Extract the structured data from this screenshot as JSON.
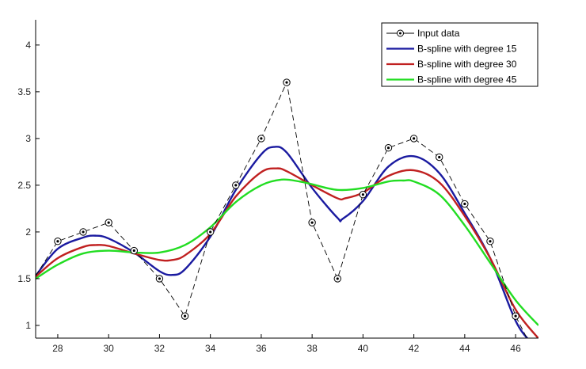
{
  "chart_data": {
    "type": "line",
    "title": "",
    "xlabel": "",
    "ylabel": "",
    "xlim": [
      27.13,
      46.9
    ],
    "ylim": [
      0.864,
      4.27
    ],
    "grid": false,
    "legend_position": "top-right",
    "x_ticks": [
      28,
      30,
      32,
      34,
      36,
      38,
      40,
      42,
      44,
      46
    ],
    "y_ticks": [
      1,
      1.5,
      2,
      2.5,
      3,
      3.5,
      4
    ],
    "x_tick_labels": [
      "28",
      "30",
      "32",
      "34",
      "36",
      "38",
      "40",
      "42",
      "44",
      "46"
    ],
    "y_tick_labels": [
      "1",
      "1.5",
      "2",
      "2.5",
      "3",
      "3.5",
      "4"
    ],
    "series": [
      {
        "name": "Input data",
        "style": "dashed-markers",
        "color": "#000000",
        "x": [
          27.13,
          28,
          29,
          30,
          31,
          32,
          33,
          34,
          35,
          36,
          37,
          38,
          39,
          40,
          41,
          42,
          43,
          44,
          45,
          46,
          46.45
        ],
        "y": [
          1.53,
          1.9,
          2.0,
          2.1,
          1.8,
          1.5,
          1.1,
          2.0,
          2.5,
          3.0,
          3.6,
          2.1,
          1.5,
          2.4,
          2.9,
          3.0,
          2.8,
          2.3,
          1.9,
          1.1,
          0.86
        ],
        "markers_x": [
          28,
          29,
          30,
          31,
          32,
          33,
          34,
          35,
          36,
          37,
          38,
          39,
          40,
          41,
          42,
          43,
          44,
          45,
          46
        ],
        "markers_y": [
          1.9,
          2.0,
          2.1,
          1.8,
          1.5,
          1.1,
          2.0,
          2.5,
          3.0,
          3.6,
          2.1,
          1.5,
          2.4,
          2.9,
          3.0,
          2.8,
          2.3,
          1.9,
          1.1
        ]
      },
      {
        "name": "B-spline with degree 15",
        "color": "#1a1aa0",
        "x": [
          27.13,
          28,
          29,
          29.5,
          30,
          31,
          32,
          32.5,
          33,
          34,
          35,
          36,
          36.5,
          37,
          38,
          39,
          39.2,
          40,
          41,
          42,
          43,
          44,
          45,
          46,
          46.6
        ],
        "y": [
          1.53,
          1.82,
          1.94,
          1.96,
          1.93,
          1.78,
          1.58,
          1.54,
          1.6,
          1.95,
          2.45,
          2.83,
          2.91,
          2.85,
          2.47,
          2.15,
          2.14,
          2.33,
          2.7,
          2.81,
          2.63,
          2.2,
          1.72,
          1.05,
          0.82
        ]
      },
      {
        "name": "B-spline with degree 30",
        "color": "#c02020",
        "x": [
          27.13,
          28,
          29,
          29.5,
          30,
          31,
          32,
          32.5,
          33,
          34,
          35,
          36,
          36.6,
          37,
          38,
          39,
          39.3,
          40,
          41,
          42,
          43,
          44,
          45,
          46,
          46.9
        ],
        "y": [
          1.52,
          1.72,
          1.84,
          1.86,
          1.85,
          1.77,
          1.7,
          1.7,
          1.75,
          1.98,
          2.38,
          2.64,
          2.68,
          2.65,
          2.5,
          2.36,
          2.36,
          2.42,
          2.6,
          2.66,
          2.53,
          2.17,
          1.72,
          1.17,
          0.86
        ]
      },
      {
        "name": "B-spline with degree 45",
        "color": "#22dd22",
        "x": [
          27.13,
          28,
          29,
          30,
          31,
          32,
          33,
          34,
          35,
          36,
          36.8,
          37.5,
          38,
          39,
          40,
          41,
          41.6,
          42,
          43,
          44,
          45,
          46,
          46.9
        ],
        "y": [
          1.5,
          1.65,
          1.77,
          1.8,
          1.78,
          1.78,
          1.86,
          2.05,
          2.32,
          2.5,
          2.56,
          2.54,
          2.51,
          2.45,
          2.47,
          2.54,
          2.55,
          2.54,
          2.4,
          2.07,
          1.67,
          1.27,
          1.0
        ]
      }
    ]
  }
}
